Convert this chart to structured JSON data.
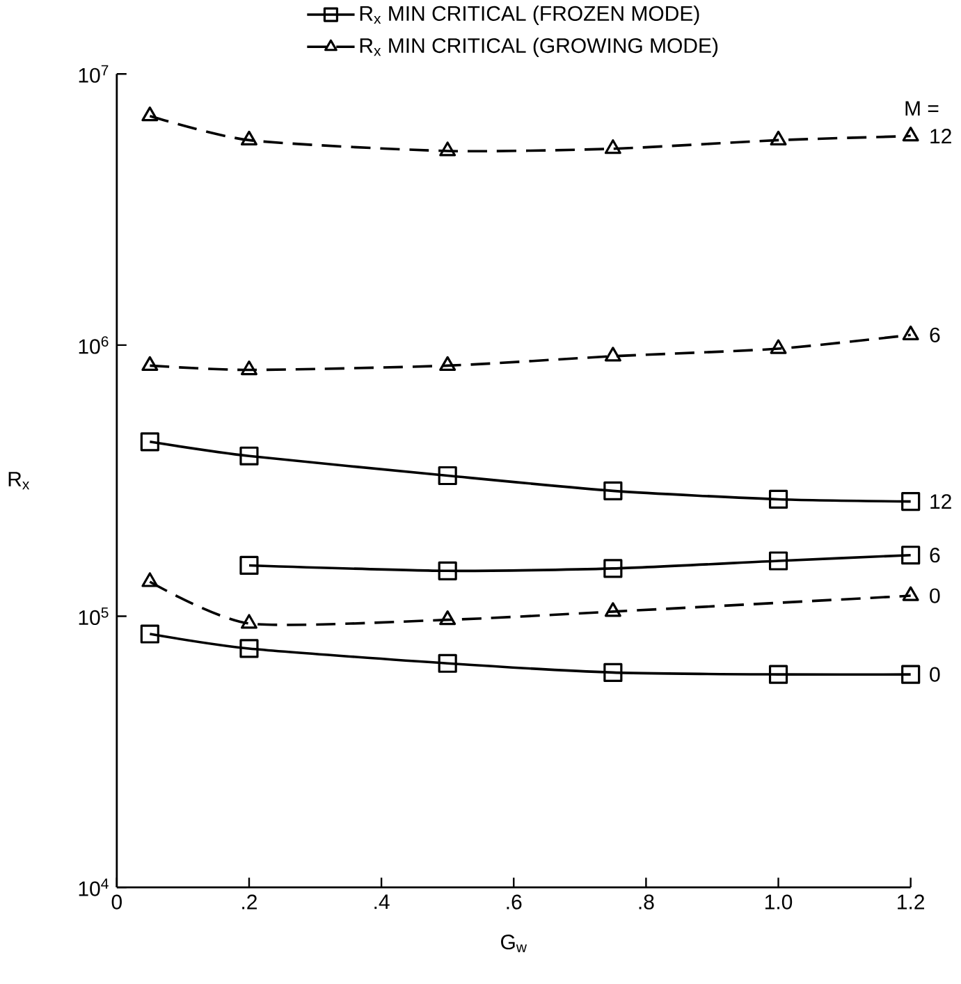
{
  "chart_data": {
    "type": "line",
    "xlabel": "G$_{w}$",
    "ylabel": "R$_{x}$",
    "log": "y",
    "legend": "top",
    "grid": false,
    "xlim": [
      0,
      1.2
    ],
    "xticks": [
      0,
      {
        "value": 0.2,
        "label": ".2"
      },
      {
        "value": 0.4,
        "label": ".4"
      },
      {
        "value": 0.6,
        "label": ".6"
      },
      {
        "value": 0.8,
        "label": ".8"
      },
      {
        "value": 1.0,
        "label": "1.0"
      },
      1.2
    ],
    "ylim": [
      10000,
      10000000
    ],
    "yticks": [
      {
        "value": 10000,
        "label": "10$^{4}$"
      },
      {
        "value": 100000,
        "label": "10$^{5}$"
      },
      {
        "value": 1000000,
        "label": "10$^{6}$"
      },
      {
        "value": 10000000,
        "label": "10$^{7}$"
      }
    ],
    "series": [
      {
        "name": "12",
        "color": "#000000",
        "marker": "square",
        "line_style": "solid",
        "x": [
          0.05,
          0.2,
          0.5,
          0.75,
          1.0,
          1.2
        ],
        "values": [
          440000,
          390000,
          330000,
          290000,
          270000,
          265000
        ]
      },
      {
        "name": "12",
        "color": "#000000",
        "marker": "triangle",
        "line_style": "dashed",
        "x": [
          0.05,
          0.2,
          0.5,
          0.75,
          1.0,
          1.2
        ],
        "values": [
          7000000,
          5700000,
          5200000,
          5300000,
          5700000,
          5900000
        ]
      },
      {
        "name": "6",
        "color": "#000000",
        "marker": "triangle",
        "line_style": "dashed",
        "x": [
          0.05,
          0.2,
          0.5,
          0.75,
          1.0,
          1.2
        ],
        "values": [
          840000,
          810000,
          840000,
          910000,
          970000,
          1090000
        ]
      },
      {
        "name": "6",
        "color": "#000000",
        "marker": "square",
        "line_style": "solid",
        "x": [
          0.2,
          0.5,
          0.75,
          1.0,
          1.2
        ],
        "values": [
          154000,
          147000,
          150000,
          160000,
          168000
        ]
      },
      {
        "name": "0",
        "color": "#000000",
        "marker": "triangle",
        "line_style": "dashed",
        "x": [
          0.05,
          0.2,
          0.5,
          0.75,
          1.2
        ],
        "values": [
          134000,
          94000,
          97000,
          104000,
          119000
        ]
      },
      {
        "name": "0",
        "color": "#000000",
        "marker": "square",
        "line_style": "solid",
        "x": [
          0.05,
          0.2,
          0.5,
          0.75,
          1.0,
          1.2
        ],
        "values": [
          86000,
          76000,
          67000,
          62000,
          61000,
          61000
        ]
      }
    ],
    "annotations": [
      "R$_{x}$  MIN CRITICAL (FROZEN MODE)",
      "R$_{x}$  MIN CRITICAL (GROWING MODE)",
      "M ="
    ]
  }
}
